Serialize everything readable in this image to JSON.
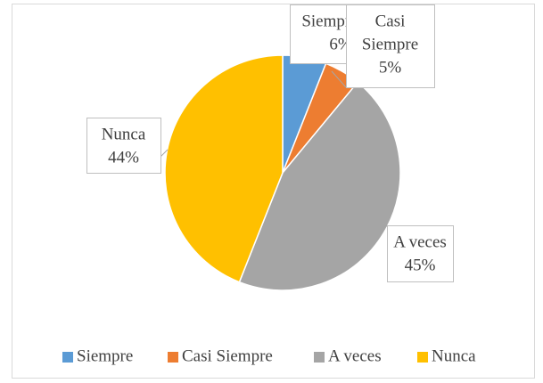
{
  "chart_data": {
    "type": "pie",
    "categories": [
      "Siempre",
      "Casi Siempre",
      "A veces",
      "Nunca"
    ],
    "values": [
      6,
      5,
      45,
      44
    ],
    "value_labels": [
      "6%",
      "5%",
      "45%",
      "44%"
    ],
    "colors": [
      "#5b9bd5",
      "#ed7d31",
      "#a5a5a5",
      "#ffc000"
    ],
    "legend": "bottom"
  }
}
